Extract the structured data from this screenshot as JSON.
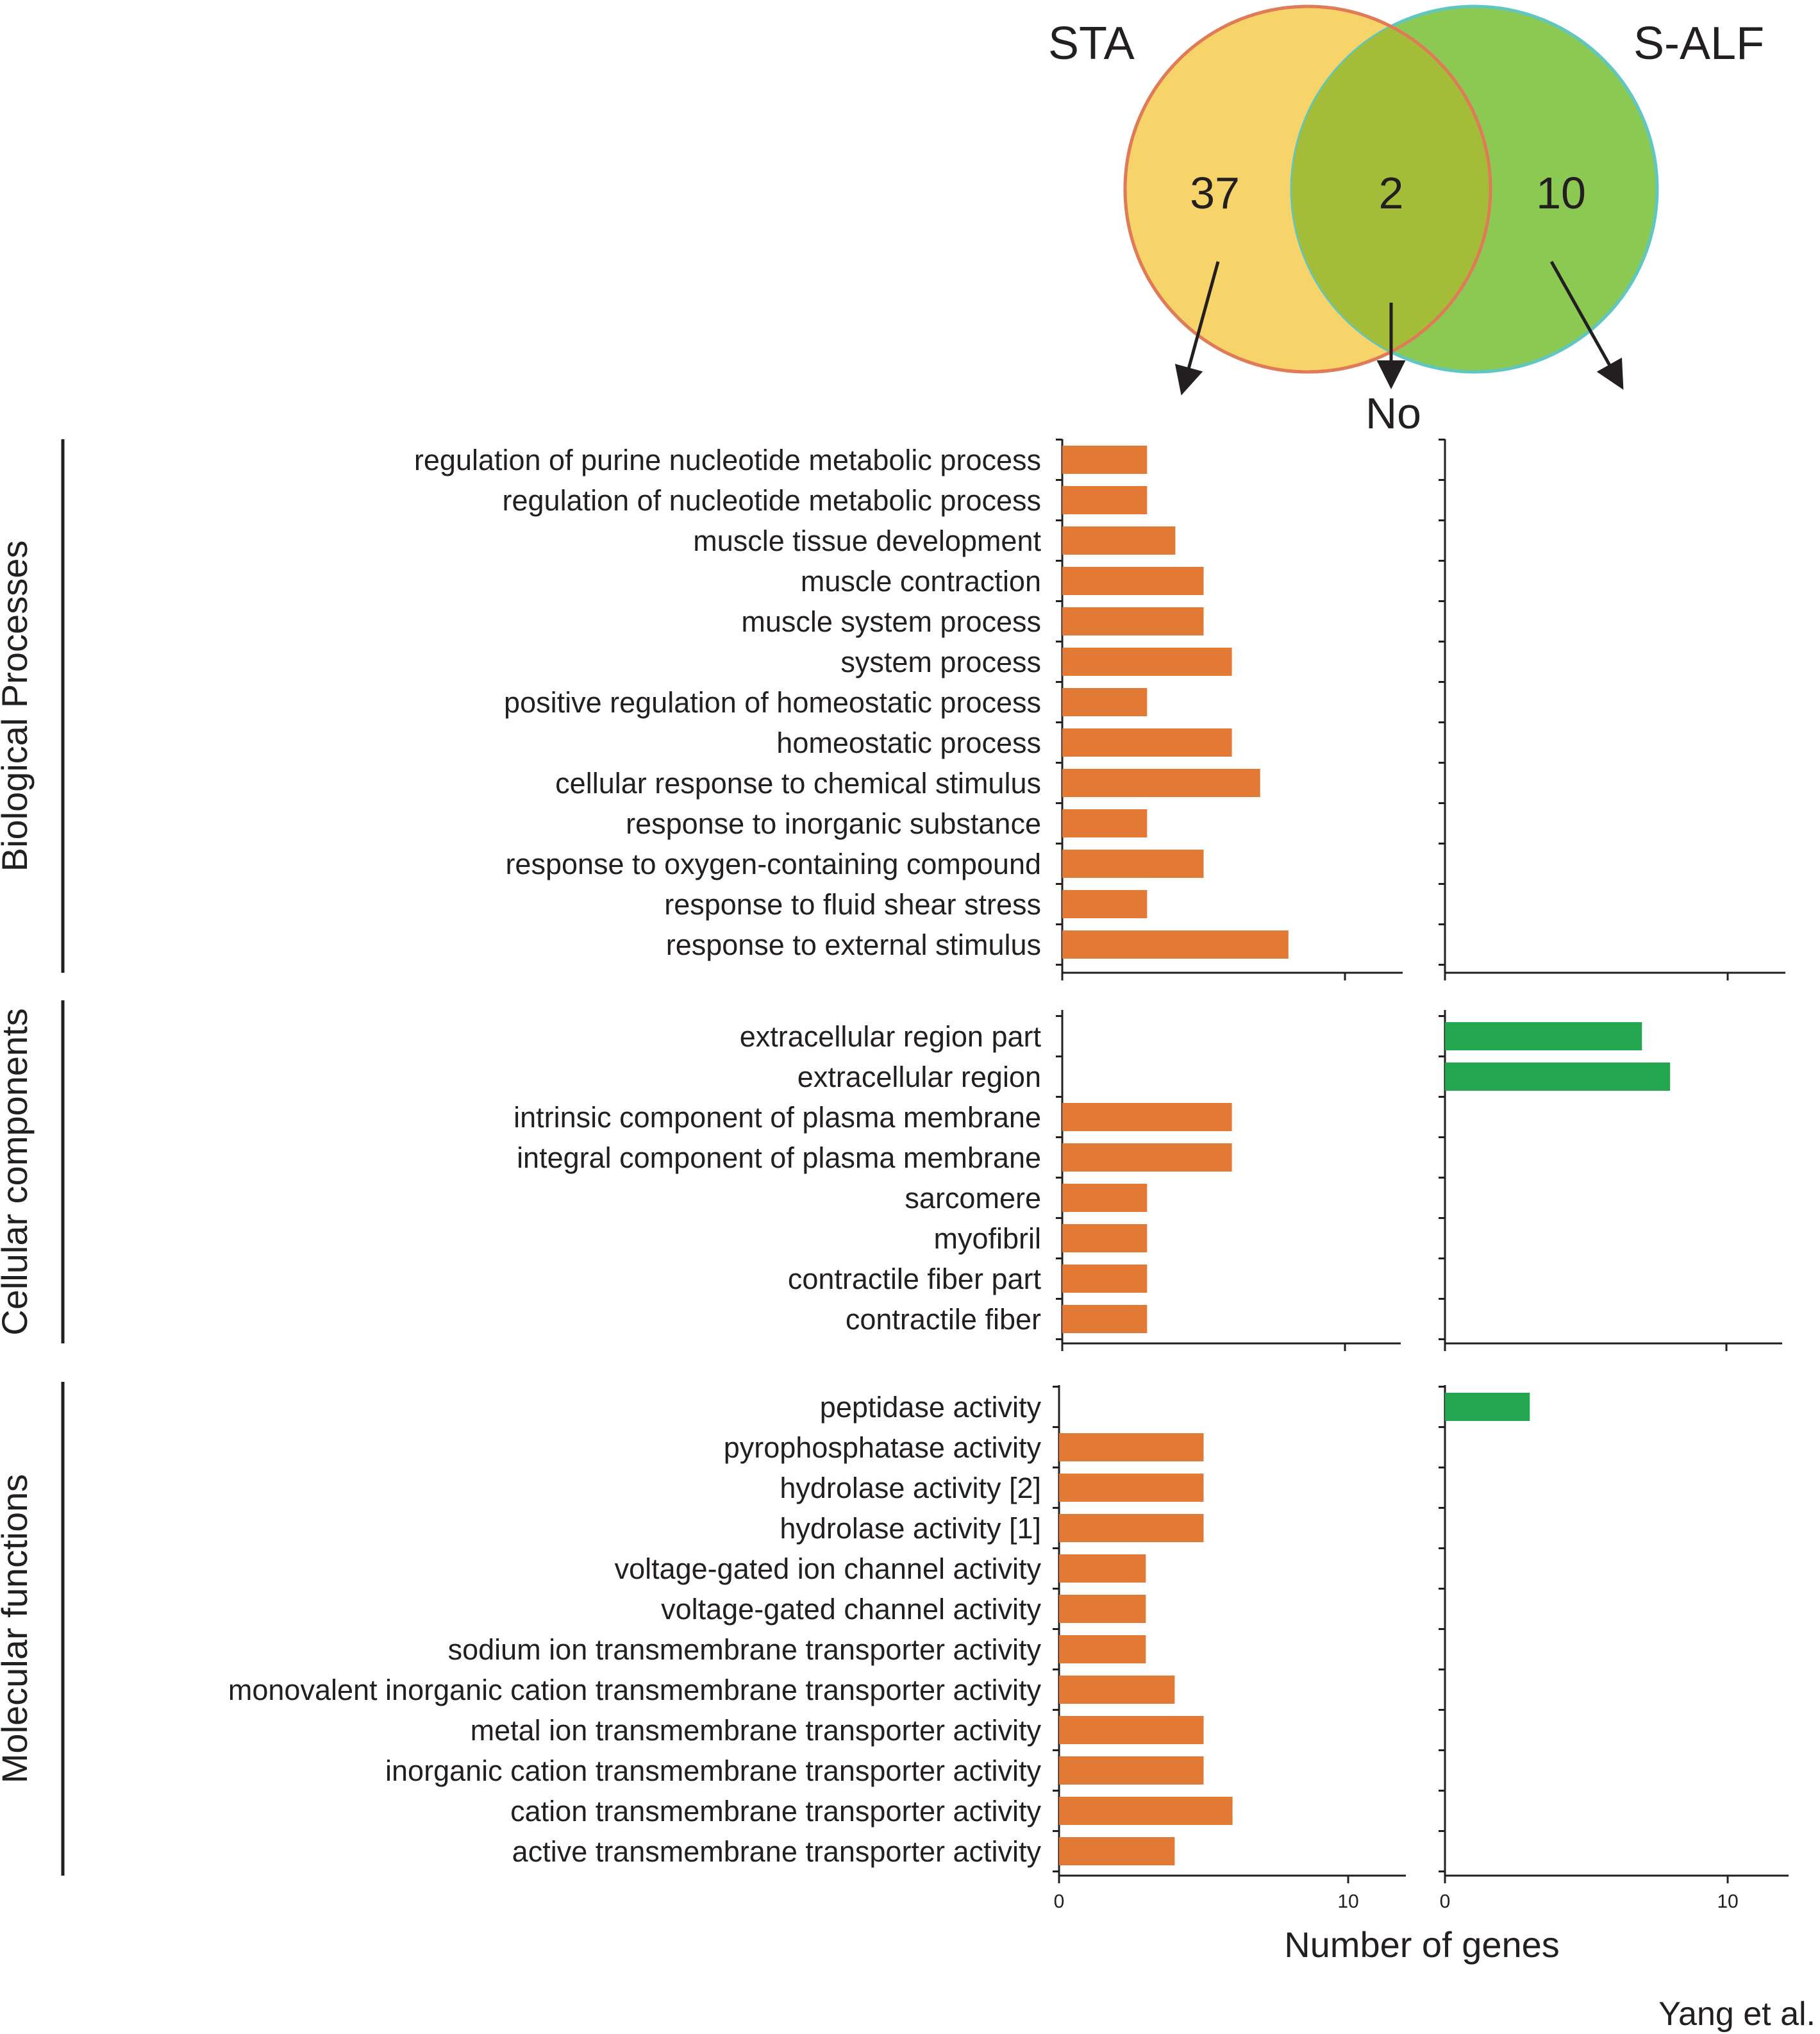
{
  "venn": {
    "left_label": "STA",
    "right_label": "S-ALF",
    "left_only": "37",
    "overlap": "2",
    "right_only": "10",
    "overlap_note": "No",
    "colors": {
      "left_fill": "#f7d469",
      "left_stroke": "#e07b57",
      "right_fill": "#8cc953",
      "right_stroke": "#5fc6c0",
      "overlap_fill": "#a3bd38"
    }
  },
  "chart_data": {
    "type": "bar",
    "orientation": "horizontal",
    "xlabel": "Number of genes",
    "xlim": [
      0,
      12
    ],
    "xticks": [
      0,
      10
    ],
    "series": [
      {
        "name": "STA",
        "color": "#e27a36"
      },
      {
        "name": "S-ALF",
        "color": "#22a650"
      }
    ],
    "groups": [
      {
        "name": "Biological Processes",
        "categories": [
          {
            "label": "regulation of purine nucleotide metabolic process",
            "sta": 3,
            "salf": 0
          },
          {
            "label": "regulation of nucleotide metabolic process",
            "sta": 3,
            "salf": 0
          },
          {
            "label": "muscle tissue development",
            "sta": 4,
            "salf": 0
          },
          {
            "label": "muscle contraction",
            "sta": 5,
            "salf": 0
          },
          {
            "label": "muscle system process",
            "sta": 5,
            "salf": 0
          },
          {
            "label": "system process",
            "sta": 6,
            "salf": 0
          },
          {
            "label": "positive regulation of homeostatic process",
            "sta": 3,
            "salf": 0
          },
          {
            "label": "homeostatic process",
            "sta": 6,
            "salf": 0
          },
          {
            "label": "cellular response to chemical stimulus",
            "sta": 7,
            "salf": 0
          },
          {
            "label": "response to inorganic substance",
            "sta": 3,
            "salf": 0
          },
          {
            "label": "response to oxygen-containing compound",
            "sta": 5,
            "salf": 0
          },
          {
            "label": "response to fluid shear stress",
            "sta": 3,
            "salf": 0
          },
          {
            "label": "response to external stimulus",
            "sta": 8,
            "salf": 0
          }
        ]
      },
      {
        "name": "Cellular components",
        "categories": [
          {
            "label": "extracellular region part",
            "sta": 0,
            "salf": 7
          },
          {
            "label": "extracellular region",
            "sta": 0,
            "salf": 8
          },
          {
            "label": "intrinsic component of plasma membrane",
            "sta": 6,
            "salf": 0
          },
          {
            "label": "integral component of plasma membrane",
            "sta": 6,
            "salf": 0
          },
          {
            "label": "sarcomere",
            "sta": 3,
            "salf": 0
          },
          {
            "label": "myofibril",
            "sta": 3,
            "salf": 0
          },
          {
            "label": "contractile fiber part",
            "sta": 3,
            "salf": 0
          },
          {
            "label": "contractile fiber",
            "sta": 3,
            "salf": 0
          }
        ]
      },
      {
        "name": "Molecular functions",
        "categories": [
          {
            "label": "peptidase activity",
            "sta": 0,
            "salf": 3
          },
          {
            "label": "pyrophosphatase activity",
            "sta": 5,
            "salf": 0
          },
          {
            "label": "hydrolase activity [2]",
            "sta": 5,
            "salf": 0
          },
          {
            "label": "hydrolase activity [1]",
            "sta": 5,
            "salf": 0
          },
          {
            "label": "voltage-gated ion channel activity",
            "sta": 3,
            "salf": 0
          },
          {
            "label": "voltage-gated channel activity",
            "sta": 3,
            "salf": 0
          },
          {
            "label": "sodium ion transmembrane transporter activity",
            "sta": 3,
            "salf": 0
          },
          {
            "label": "monovalent inorganic cation transmembrane transporter activity",
            "sta": 4,
            "salf": 0
          },
          {
            "label": "metal ion transmembrane transporter activity",
            "sta": 5,
            "salf": 0
          },
          {
            "label": "inorganic cation transmembrane transporter activity",
            "sta": 5,
            "salf": 0
          },
          {
            "label": "cation transmembrane transporter activity",
            "sta": 6,
            "salf": 0
          },
          {
            "label": "active transmembrane transporter activity",
            "sta": 4,
            "salf": 0
          }
        ]
      }
    ]
  },
  "credit": "Yang et al."
}
